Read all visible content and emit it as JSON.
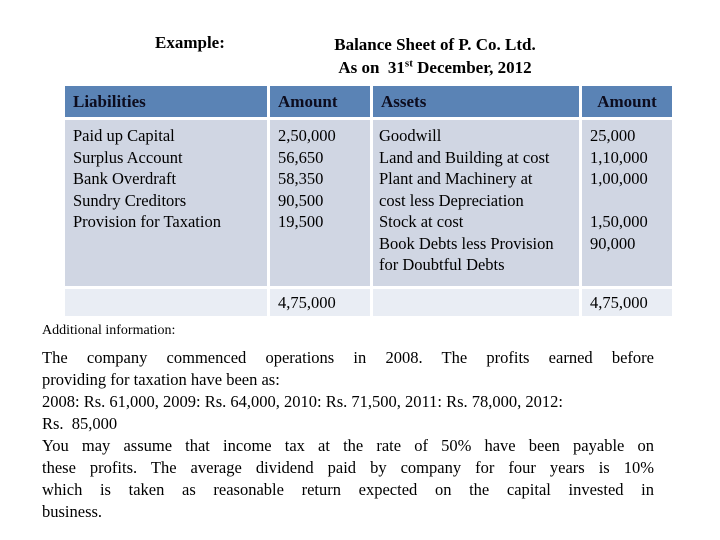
{
  "page": {
    "example_label": "Example:",
    "title_line1": "Balance Sheet of P. Co. Ltd.",
    "title_line2_prefix": "As on  31",
    "title_line2_sup": "st",
    "title_line2_suffix": " December, 2012"
  },
  "table": {
    "headers": {
      "liabilities": "Liabilities",
      "amount_left": "Amount",
      "assets": "Assets",
      "amount_right": "Amount"
    },
    "liabilities_items": [
      "Paid up Capital",
      "Surplus Account",
      "Bank Overdraft",
      "Sundry Creditors",
      "Provision for Taxation"
    ],
    "liabilities_amounts": [
      "2,50,000",
      "56,650",
      "58,350",
      "90,500",
      "19,500"
    ],
    "assets_items": [
      "Goodwill",
      "Land and Building at cost",
      "Plant and Machinery at",
      "cost less Depreciation",
      "Stock at cost",
      "Book Debts less Provision",
      "for Doubtful Debts"
    ],
    "assets_amounts": [
      "25,000",
      "1,10,000",
      "1,00,000",
      "",
      "1,50,000",
      "90,000"
    ],
    "total_liabilities": "4,75,000",
    "total_assets": "4,75,000"
  },
  "additional_info": {
    "heading": "Additional information:",
    "lines": [
      "The company commenced operations in 2008. The profits earned before",
      "providing for taxation have been as:",
      "2008: Rs. 61,000, 2009: Rs. 64,000, 2010: Rs. 71,500, 2011: Rs. 78,000, 2012:",
      "Rs.  85,000",
      "You may assume that income tax at the rate of 50% have been payable on",
      "these profits. The average dividend paid by company for four years is 10%",
      "which is taken as reasonable return expected on the capital invested in",
      "business."
    ]
  },
  "colors": {
    "header_bg": "#5a83b5",
    "body_band_bg": "#d0d6e3",
    "total_band_bg": "#e9edf4",
    "text": "#000000"
  }
}
